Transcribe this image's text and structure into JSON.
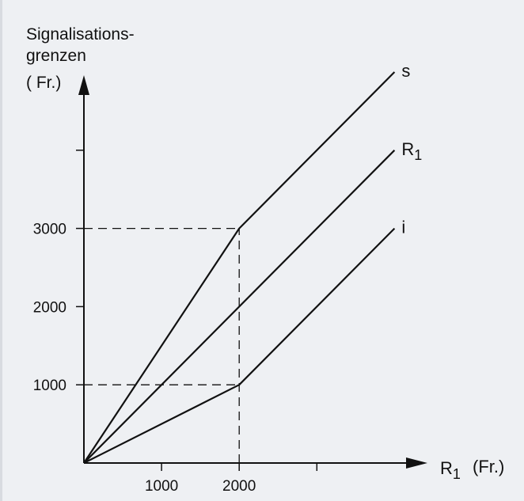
{
  "chart_data": {
    "type": "line",
    "title": "",
    "ylabel_lines": [
      "Signalisations-",
      "grenzen",
      "( Fr.)"
    ],
    "xlabel_main": "R",
    "xlabel_sub": "1",
    "xlabel_unit": "(Fr.)",
    "xlim": [
      0,
      4200
    ],
    "ylim": [
      0,
      4900
    ],
    "x_ticks": [
      1000,
      2000,
      3000
    ],
    "x_tick_labels": [
      "1000",
      "2000",
      ""
    ],
    "y_ticks": [
      1000,
      2000,
      3000,
      4000
    ],
    "y_tick_labels": [
      "1000",
      "2000",
      "3000",
      ""
    ],
    "reference_lines": [
      {
        "y": 3000,
        "x_end": 2000
      },
      {
        "y": 1000,
        "x_end": 2000
      },
      {
        "x": 2000,
        "y_end": 3000
      }
    ],
    "grid": false,
    "series": [
      {
        "name": "s",
        "sub": "",
        "x": [
          0,
          2000,
          4000
        ],
        "y": [
          0,
          3000,
          5000
        ]
      },
      {
        "name": "R",
        "sub": "1",
        "x": [
          0,
          4000
        ],
        "y": [
          0,
          4000
        ]
      },
      {
        "name": "i",
        "sub": "",
        "x": [
          0,
          2000,
          4000
        ],
        "y": [
          0,
          1000,
          3000
        ]
      }
    ]
  }
}
